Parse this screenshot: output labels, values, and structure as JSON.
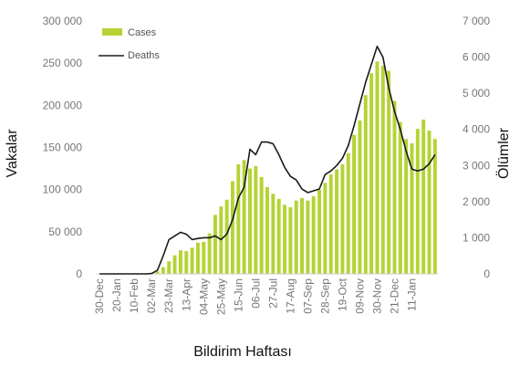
{
  "chart_data": {
    "type": "bar+line",
    "xlabel": "Bildirim Haftası",
    "ylabel_left": "Vakalar",
    "ylabel_right": "Ölümler",
    "ylim_left": [
      0,
      300000
    ],
    "ylim_right": [
      0,
      7000
    ],
    "yticks_left": [
      "0",
      "50 000",
      "100 000",
      "150 000",
      "200 000",
      "250 000",
      "300 000"
    ],
    "yticks_right": [
      "0",
      "1 000",
      "2 000",
      "3 000",
      "4 000",
      "5 000",
      "6 000",
      "7 000"
    ],
    "x_tick_labels": [
      "30-Dec",
      "20-Jan",
      "10-Feb",
      "02-Mar",
      "23-Mar",
      "13-Apr",
      "04-May",
      "25-May",
      "15-Jun",
      "06-Jul",
      "27-Jul",
      "17-Aug",
      "07-Sep",
      "28-Sep",
      "19-Oct",
      "09-Nov",
      "30-Nov",
      "21-Dec",
      "11-Jan"
    ],
    "x_tick_every": 3,
    "colors": {
      "cases": "#b5d334",
      "deaths": "#1a1a1a",
      "axis": "#cccccc"
    },
    "series": [
      {
        "name": "Cases",
        "kind": "bar",
        "values": [
          0,
          0,
          0,
          0,
          0,
          0,
          0,
          0,
          0,
          500,
          3000,
          8000,
          15000,
          22000,
          28000,
          27000,
          31000,
          37000,
          38000,
          48000,
          70000,
          80000,
          88000,
          110000,
          130000,
          135000,
          125000,
          128000,
          115000,
          103000,
          95000,
          89000,
          82000,
          79000,
          87000,
          90000,
          87000,
          92000,
          100000,
          108000,
          118000,
          124000,
          130000,
          143000,
          165000,
          182000,
          212000,
          238000,
          252000,
          247000,
          241000,
          205000,
          180000,
          160000,
          155000,
          172000,
          183000,
          170000,
          160000
        ]
      },
      {
        "name": "Deaths",
        "kind": "line",
        "values": [
          0,
          0,
          0,
          0,
          0,
          0,
          0,
          0,
          0,
          10,
          100,
          500,
          950,
          1050,
          1150,
          1100,
          950,
          980,
          1000,
          1000,
          1050,
          950,
          1100,
          1500,
          2100,
          2400,
          3450,
          3300,
          3650,
          3650,
          3600,
          3300,
          2950,
          2700,
          2600,
          2350,
          2250,
          2300,
          2350,
          2750,
          2850,
          3000,
          3200,
          3550,
          4100,
          4700,
          5300,
          5800,
          6300,
          6000,
          5150,
          4500,
          4000,
          3400,
          2900,
          2850,
          2900,
          3050,
          3300
        ]
      }
    ]
  }
}
